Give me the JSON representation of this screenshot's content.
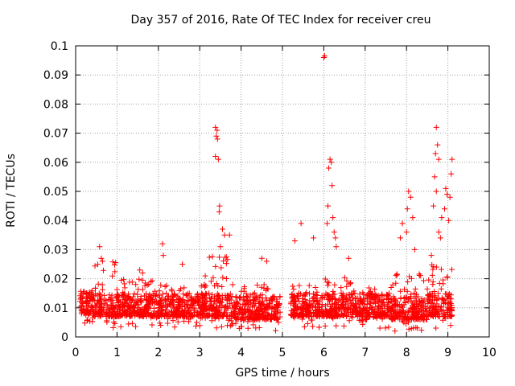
{
  "chart_data": {
    "type": "scatter",
    "title": "Day 357 of 2016, Rate Of TEC Index for receiver creu",
    "xlabel": "GPS time / hours",
    "ylabel": "ROTI / TECUs",
    "xlim": [
      0,
      10
    ],
    "ylim": [
      0,
      0.1
    ],
    "xticks": [
      0,
      1,
      2,
      3,
      4,
      5,
      6,
      7,
      8,
      9,
      10
    ],
    "yticks": [
      0,
      0.01,
      0.02,
      0.03,
      0.04,
      0.05,
      0.06,
      0.07,
      0.08,
      0.09,
      0.1
    ],
    "ytick_labels": [
      "0",
      "0.01",
      "0.02",
      "0.03",
      "0.04",
      "0.05",
      "0.06",
      "0.07",
      "0.08",
      "0.09",
      "0.1"
    ],
    "grid": true,
    "marker": "+",
    "color": "#ff0000",
    "series": [
      {
        "name": "ROTI",
        "notes": "Dense cloud of points between 0.003 and 0.02 TECU/s from ~0.1 h to ~9.1 h with a data gap between ~4.95 h and ~5.2 h; representative outliers listed below.",
        "outliers": [
          {
            "x": 0.58,
            "y": 0.031
          },
          {
            "x": 0.62,
            "y": 0.027
          },
          {
            "x": 0.65,
            "y": 0.026
          },
          {
            "x": 1.55,
            "y": 0.023
          },
          {
            "x": 1.62,
            "y": 0.022
          },
          {
            "x": 2.1,
            "y": 0.032
          },
          {
            "x": 2.12,
            "y": 0.028
          },
          {
            "x": 2.58,
            "y": 0.025
          },
          {
            "x": 3.38,
            "y": 0.072
          },
          {
            "x": 3.42,
            "y": 0.071
          },
          {
            "x": 3.4,
            "y": 0.069
          },
          {
            "x": 3.43,
            "y": 0.068
          },
          {
            "x": 3.38,
            "y": 0.062
          },
          {
            "x": 3.45,
            "y": 0.061
          },
          {
            "x": 3.48,
            "y": 0.045
          },
          {
            "x": 3.47,
            "y": 0.043
          },
          {
            "x": 3.55,
            "y": 0.037
          },
          {
            "x": 3.6,
            "y": 0.035
          },
          {
            "x": 3.72,
            "y": 0.035
          },
          {
            "x": 3.5,
            "y": 0.031
          },
          {
            "x": 4.5,
            "y": 0.027
          },
          {
            "x": 4.62,
            "y": 0.026
          },
          {
            "x": 5.45,
            "y": 0.039
          },
          {
            "x": 5.3,
            "y": 0.033
          },
          {
            "x": 5.75,
            "y": 0.034
          },
          {
            "x": 6.0,
            "y": 0.096
          },
          {
            "x": 6.02,
            "y": 0.0965
          },
          {
            "x": 6.15,
            "y": 0.061
          },
          {
            "x": 6.18,
            "y": 0.06
          },
          {
            "x": 6.12,
            "y": 0.058
          },
          {
            "x": 6.2,
            "y": 0.052
          },
          {
            "x": 6.1,
            "y": 0.045
          },
          {
            "x": 6.22,
            "y": 0.041
          },
          {
            "x": 6.08,
            "y": 0.039
          },
          {
            "x": 6.25,
            "y": 0.036
          },
          {
            "x": 6.28,
            "y": 0.034
          },
          {
            "x": 6.3,
            "y": 0.031
          },
          {
            "x": 6.6,
            "y": 0.027
          },
          {
            "x": 8.05,
            "y": 0.05
          },
          {
            "x": 8.1,
            "y": 0.048
          },
          {
            "x": 8.02,
            "y": 0.044
          },
          {
            "x": 8.15,
            "y": 0.041
          },
          {
            "x": 7.9,
            "y": 0.039
          },
          {
            "x": 8.0,
            "y": 0.036
          },
          {
            "x": 7.85,
            "y": 0.034
          },
          {
            "x": 8.2,
            "y": 0.03
          },
          {
            "x": 8.72,
            "y": 0.072
          },
          {
            "x": 8.75,
            "y": 0.066
          },
          {
            "x": 8.7,
            "y": 0.063
          },
          {
            "x": 8.78,
            "y": 0.061
          },
          {
            "x": 9.1,
            "y": 0.061
          },
          {
            "x": 8.68,
            "y": 0.055
          },
          {
            "x": 9.08,
            "y": 0.056
          },
          {
            "x": 8.95,
            "y": 0.051
          },
          {
            "x": 8.72,
            "y": 0.05
          },
          {
            "x": 8.98,
            "y": 0.049
          },
          {
            "x": 9.05,
            "y": 0.048
          },
          {
            "x": 8.65,
            "y": 0.045
          },
          {
            "x": 8.92,
            "y": 0.044
          },
          {
            "x": 8.85,
            "y": 0.041
          },
          {
            "x": 9.02,
            "y": 0.04
          },
          {
            "x": 8.78,
            "y": 0.036
          },
          {
            "x": 8.82,
            "y": 0.034
          },
          {
            "x": 8.6,
            "y": 0.028
          }
        ],
        "bands": [
          {
            "x_start": 0.1,
            "x_end": 0.45,
            "y_low": 0.004,
            "y_high": 0.016
          },
          {
            "x_start": 0.45,
            "x_end": 1.05,
            "y_low": 0.003,
            "y_high": 0.026
          },
          {
            "x_start": 1.05,
            "x_end": 2.0,
            "y_low": 0.003,
            "y_high": 0.02
          },
          {
            "x_start": 2.0,
            "x_end": 3.1,
            "y_low": 0.003,
            "y_high": 0.018
          },
          {
            "x_start": 3.1,
            "x_end": 3.85,
            "y_low": 0.003,
            "y_high": 0.028
          },
          {
            "x_start": 3.85,
            "x_end": 4.95,
            "y_low": 0.002,
            "y_high": 0.018
          },
          {
            "x_start": 5.2,
            "x_end": 5.95,
            "y_low": 0.003,
            "y_high": 0.018
          },
          {
            "x_start": 5.95,
            "x_end": 6.75,
            "y_low": 0.003,
            "y_high": 0.022
          },
          {
            "x_start": 6.75,
            "x_end": 7.6,
            "y_low": 0.003,
            "y_high": 0.017
          },
          {
            "x_start": 7.6,
            "x_end": 8.5,
            "y_low": 0.002,
            "y_high": 0.022
          },
          {
            "x_start": 8.5,
            "x_end": 9.1,
            "y_low": 0.003,
            "y_high": 0.025
          }
        ]
      }
    ]
  }
}
